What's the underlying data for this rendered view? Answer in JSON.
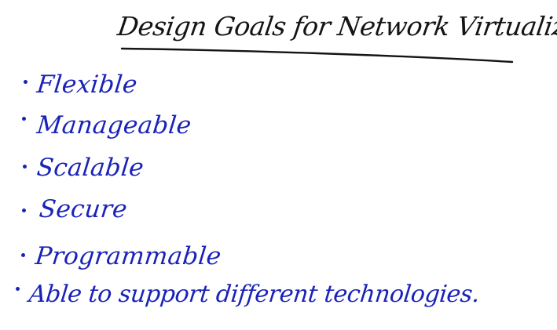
{
  "title": "Design Goals for Network Virtualization",
  "items": [
    {
      "label": "Flexible"
    },
    {
      "label": "Manageable"
    },
    {
      "label": "Scalable"
    },
    {
      "label": "Secure"
    },
    {
      "label": "Programmable"
    },
    {
      "label": "Able to support different technologies."
    }
  ],
  "colors": {
    "ink_title": "#141414",
    "ink_items": "#1a23b8",
    "background": "#ffffff"
  }
}
